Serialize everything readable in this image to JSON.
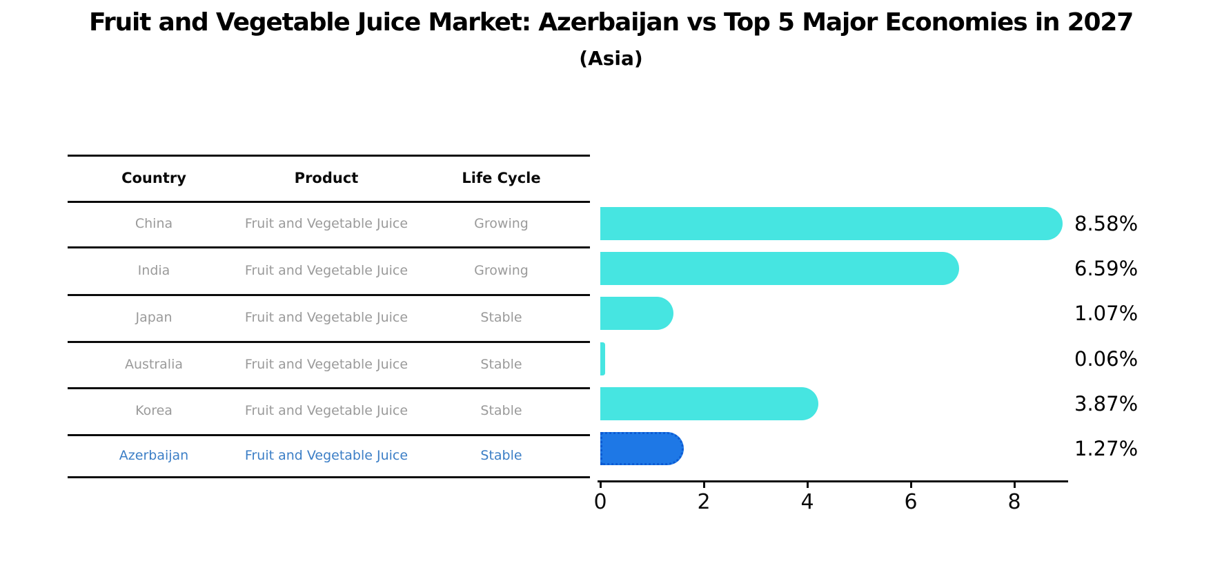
{
  "title": "Fruit and Vegetable Juice Market: Azerbaijan vs Top 5 Major Economies in 2027",
  "subtitle": "(Asia)",
  "colors": {
    "bar_default": "#46e5e1",
    "bar_highlight_fill": "#1e78e6",
    "bar_highlight_border": "#0c5bd3",
    "row_text": "#9a9a9a",
    "highlight_text": "#3b7ec6",
    "rule": "#0a0a0a",
    "value_label": "#000000"
  },
  "table": {
    "headers": [
      "Country",
      "Product",
      "Life Cycle"
    ],
    "rows": [
      {
        "country": "China",
        "product": "Fruit and Vegetable Juice",
        "life_cycle": "Growing",
        "highlighted": false
      },
      {
        "country": "India",
        "product": "Fruit and Vegetable Juice",
        "life_cycle": "Growing",
        "highlighted": false
      },
      {
        "country": "Japan",
        "product": "Fruit and Vegetable Juice",
        "life_cycle": "Stable",
        "highlighted": false
      },
      {
        "country": "Australia",
        "product": "Fruit and Vegetable Juice",
        "life_cycle": "Stable",
        "highlighted": false
      },
      {
        "country": "Korea",
        "product": "Fruit and Vegetable Juice",
        "life_cycle": "Stable",
        "highlighted": false
      },
      {
        "country": "Azerbaijan",
        "product": "Fruit and Vegetable Juice",
        "life_cycle": "Stable",
        "highlighted": true
      }
    ]
  },
  "chart_data": {
    "type": "bar",
    "orientation": "horizontal",
    "title": "Fruit and Vegetable Juice Market: Azerbaijan vs Top 5 Major Economies in 2027 (Asia)",
    "categories": [
      "China",
      "India",
      "Japan",
      "Australia",
      "Korea",
      "Azerbaijan"
    ],
    "values": [
      8.58,
      6.59,
      1.07,
      0.06,
      3.87,
      1.27
    ],
    "labels": [
      "8.58%",
      "6.59%",
      "1.07%",
      "0.06%",
      "3.87%",
      "1.27%"
    ],
    "highlight_category": "Azerbaijan",
    "xlabel": "",
    "ylabel": "",
    "xlim": [
      0,
      9
    ],
    "x_ticks": [
      0,
      2,
      4,
      6,
      8
    ],
    "grid": false,
    "legend": false
  }
}
